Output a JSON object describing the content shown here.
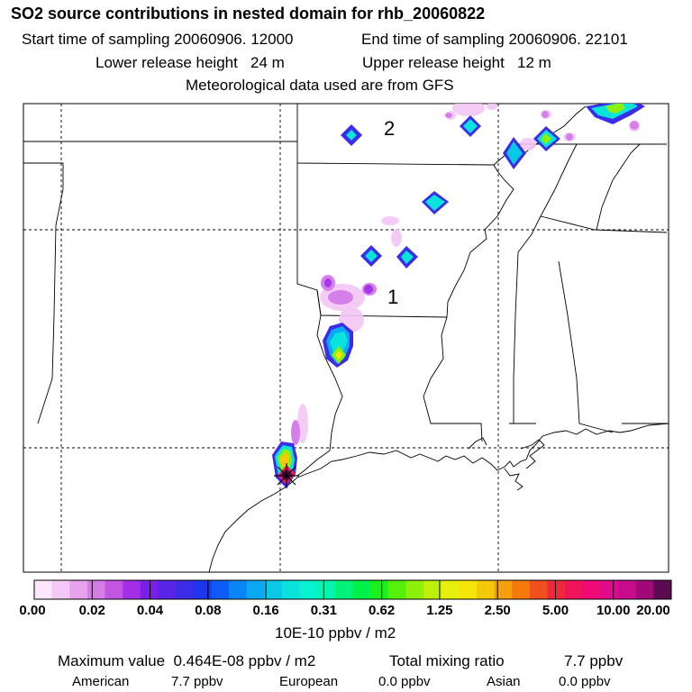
{
  "header": {
    "title": "SO2 source contributions in nested domain for rhb_20060822",
    "start_label": "Start time of sampling 20060906. 12000",
    "end_label": "End time of sampling 20060906. 22101",
    "lower_label": "Lower release height   24 m",
    "upper_label": "Upper release height   12 m",
    "met_label": "Meteorological data used are from GFS"
  },
  "map": {
    "annotations": [
      {
        "id": "1",
        "text": "1"
      },
      {
        "id": "2",
        "text": "2"
      }
    ],
    "source_marker": "star-marker"
  },
  "colorbar": {
    "unit_label": "10E-10 ppbv / m2",
    "tick_labels": [
      "0.00",
      "0.02",
      "0.04",
      "0.08",
      "0.16",
      "0.31",
      "0.62",
      "1.25",
      "2.50",
      "5.00",
      "10.00",
      "20.00"
    ],
    "colors": [
      "#ffe6ff",
      "#f5c8f5",
      "#e9a2ee",
      "#d67ce6",
      "#c355e3",
      "#a42ee6",
      "#7a1fe8",
      "#5a24e6",
      "#3b2ce8",
      "#1e36f0",
      "#0c5cf5",
      "#0a84f7",
      "#0aa8f2",
      "#0ac8e6",
      "#0ae2dc",
      "#07f2d0",
      "#05f5b0",
      "#00f27a",
      "#00f04a",
      "#1cf01c",
      "#55f00c",
      "#8cf00a",
      "#bff00a",
      "#e6f00a",
      "#f5e60a",
      "#f5c80a",
      "#f5a00a",
      "#f57a0a",
      "#f0501e",
      "#f0283c",
      "#f0145a",
      "#f00a78",
      "#e00a8c",
      "#c80a8c",
      "#a00a78",
      "#5a0a50"
    ]
  },
  "stats": {
    "max_label": "Maximum value  0.464E-08 ppbv / m2",
    "total_label": "Total mixing ratio",
    "total_value": "7.7 ppbv",
    "american_label": "American",
    "american_value": "7.7 ppbv",
    "european_label": "European",
    "european_value": "0.0 ppbv",
    "asian_label": "Asian",
    "asian_value": "0.0 ppbv"
  }
}
